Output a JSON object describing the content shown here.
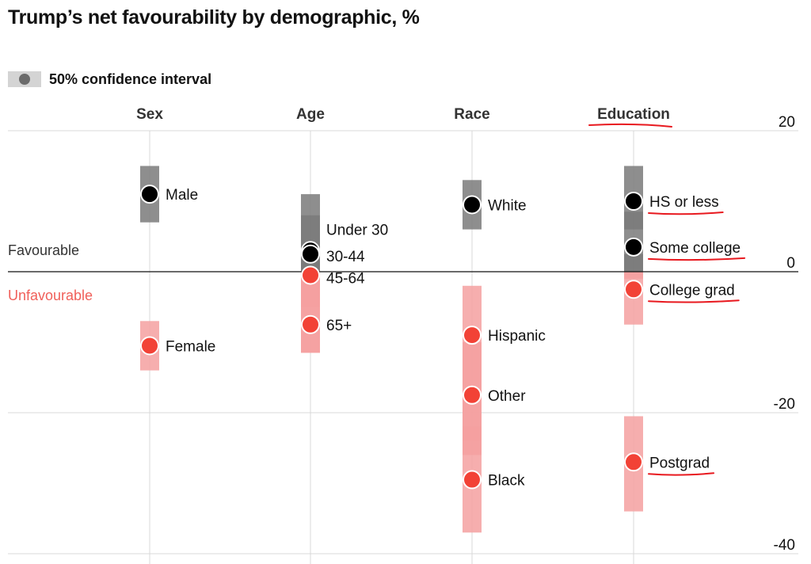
{
  "chart_data": {
    "type": "dot-interval",
    "title": "Trump’s net favourability by demographic, %",
    "legend": {
      "label": "50% confidence interval"
    },
    "ylim": [
      -40,
      20
    ],
    "yticks": [
      20,
      0,
      -20,
      -40
    ],
    "zone_labels": {
      "positive": "Favourable",
      "negative": "Unfavourable"
    },
    "colors": {
      "positive_dot": "#000000",
      "negative_dot": "#f24236",
      "positive_band": "#7a7a7a",
      "negative_band": "#f4a0a0",
      "annotation": "#e8191f",
      "unfavourable_text": "#f0605a"
    },
    "groups": [
      {
        "name": "Sex",
        "points": [
          {
            "label": "Male",
            "value": 11,
            "ci": [
              7,
              15
            ]
          },
          {
            "label": "Female",
            "value": -10.5,
            "ci": [
              -14,
              -7
            ]
          }
        ]
      },
      {
        "name": "Age",
        "points": [
          {
            "label": "Under 30",
            "value": 3,
            "ci": [
              -11.5,
              11
            ]
          },
          {
            "label": "30-44",
            "value": 2.5,
            "ci": [
              -5,
              8
            ]
          },
          {
            "label": "45-64",
            "value": -0.5,
            "ci": [
              -5,
              3
            ]
          },
          {
            "label": "65+",
            "value": -7.5,
            "ci": [
              -11.5,
              -4
            ]
          }
        ]
      },
      {
        "name": "Race",
        "points": [
          {
            "label": "White",
            "value": 9.5,
            "ci": [
              6,
              13
            ]
          },
          {
            "label": "Hispanic",
            "value": -9,
            "ci": [
              -24,
              -2
            ]
          },
          {
            "label": "Other",
            "value": -17.5,
            "ci": [
              -26,
              -10
            ]
          },
          {
            "label": "Black",
            "value": -29.5,
            "ci": [
              -37,
              -22
            ]
          }
        ]
      },
      {
        "name": "Education",
        "points": [
          {
            "label": "HS or less",
            "value": 10,
            "ci": [
              6,
              15
            ]
          },
          {
            "label": "Some college",
            "value": 3.5,
            "ci": [
              -1,
              8.5
            ]
          },
          {
            "label": "College grad",
            "value": -2.5,
            "ci": [
              -7.5,
              2.5
            ]
          },
          {
            "label": "Postgrad",
            "value": -27,
            "ci": [
              -34,
              -20.5
            ]
          }
        ]
      }
    ],
    "underlined_group": "Education"
  }
}
